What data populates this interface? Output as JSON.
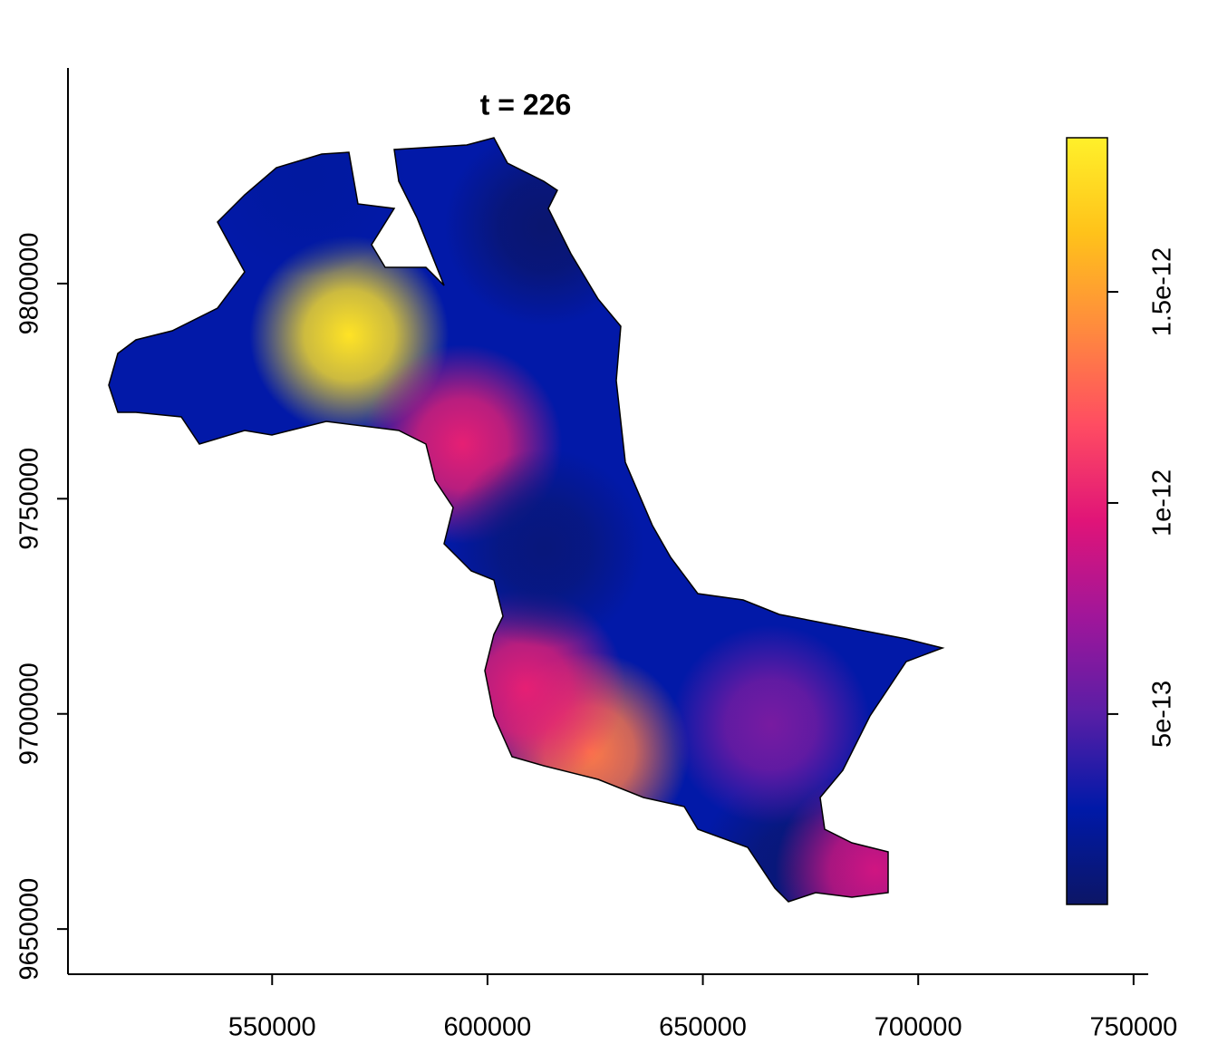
{
  "chart_data": {
    "type": "raster",
    "title": "t = 226",
    "xlim": [
      502600,
      753400
    ],
    "xticks": [
      550000,
      600000,
      650000,
      700000,
      750000
    ],
    "ylim": [
      9639500,
      9850100
    ],
    "yticks": [
      9650000,
      9700000,
      9750000,
      9800000
    ],
    "x": [
      567900,
      623700,
      608900,
      594200,
      613200,
      613200,
      672100,
      690000,
      665800,
      558400
    ],
    "y": [
      9788000,
      9691200,
      9705900,
      9762700,
      9738500,
      9813300,
      9663800,
      9663800,
      9697500,
      9824800
    ],
    "values": [
      1.8e-12,
      1.35e-12,
      1e-12,
      1e-12,
      1.2e-13,
      8e-14,
      1e-13,
      9e-13,
      6e-13,
      2.5e-13
    ],
    "zlim": [
      4.9e-14,
      1.865e-12
    ],
    "zticks": [
      5e-13,
      1e-12,
      1.5e-12
    ],
    "colors": [
      "#0c1666",
      "#0019a8",
      "#5a1ea6",
      "#a0169a",
      "#e01478",
      "#ff4c62",
      "#ff8a3e",
      "#ffc21a",
      "#fff02a"
    ],
    "base_value": 2.8e-13
  }
}
